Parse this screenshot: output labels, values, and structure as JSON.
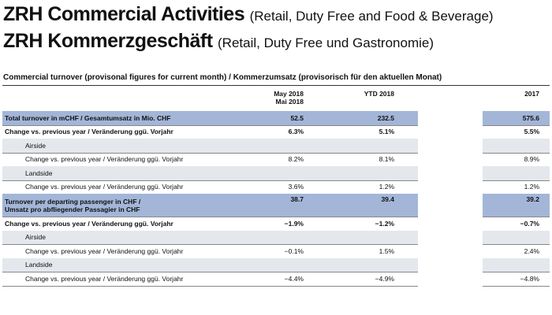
{
  "titles": [
    {
      "main": "ZRH Commercial Activities",
      "note": "(Retail, Duty Free and Food & Beverage)"
    },
    {
      "main": "ZRH Kommerzgeschäft",
      "note": "(Retail, Duty Free und Gastronomie)"
    }
  ],
  "table": {
    "caption": "Commercial turnover (provisonal figures for current month) / Kommerzumsatz (provisorisch für den aktuellen Monat)",
    "columns": [
      [
        "May 2018",
        "Mai 2018"
      ],
      [
        "YTD 2018"
      ],
      [
        "2017"
      ]
    ],
    "rows": [
      {
        "label": [
          "Total turnover in mCHF / Gesamtumsatz in Mio. CHF"
        ],
        "values": [
          "52.5",
          "232.5",
          "575.6"
        ]
      },
      {
        "label": [
          "Change vs. previous year / Veränderung ggü. Vorjahr"
        ],
        "values": [
          "6.3%",
          "5.1%",
          "5.5%"
        ]
      },
      {
        "label": [
          "Airside"
        ]
      },
      {
        "label": [
          "Change vs. previous year / Veränderung ggü. Vorjahr"
        ],
        "values": [
          "8.2%",
          "8.1%",
          "8.9%"
        ]
      },
      {
        "label": [
          "Landside"
        ]
      },
      {
        "label": [
          "Change vs. previous year / Veränderung ggü. Vorjahr"
        ],
        "values": [
          "3.6%",
          "1.2%",
          "1.2%"
        ]
      },
      {
        "label": [
          "Turnover per departing passenger in CHF /",
          "Umsatz pro abfliegender Passagier in CHF"
        ],
        "values": [
          "38.7",
          "39.4",
          "39.2"
        ]
      },
      {
        "label": [
          "Change vs. previous year / Veränderung ggü. Vorjahr"
        ],
        "values": [
          "−1.9%",
          "−1.2%",
          "−0.7%"
        ]
      },
      {
        "label": [
          "Airside"
        ]
      },
      {
        "label": [
          "Change vs. previous year / Veränderung ggü. Vorjahr"
        ],
        "values": [
          "−0.1%",
          "1.5%",
          "2.4%"
        ]
      },
      {
        "label": [
          "Landside"
        ]
      },
      {
        "label": [
          "Change vs. previous year / Veränderung ggü. Vorjahr"
        ],
        "values": [
          "−4.4%",
          "−4.9%",
          "−4.8%"
        ]
      }
    ]
  }
}
